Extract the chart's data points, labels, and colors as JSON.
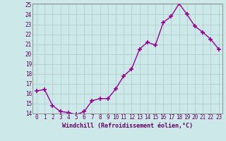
{
  "x": [
    0,
    1,
    2,
    3,
    4,
    5,
    6,
    7,
    8,
    9,
    10,
    11,
    12,
    13,
    14,
    15,
    16,
    17,
    18,
    19,
    20,
    21,
    22,
    23
  ],
  "y": [
    16.3,
    16.4,
    14.8,
    14.2,
    14.1,
    13.9,
    14.2,
    15.3,
    15.5,
    15.5,
    16.5,
    17.8,
    18.5,
    20.5,
    21.2,
    20.9,
    23.2,
    23.8,
    25.1,
    24.0,
    22.8,
    22.2,
    21.5,
    20.5
  ],
  "line_color": "#990099",
  "marker_color": "#990099",
  "bg_color": "#cce8e8",
  "grid_color": "#aacccc",
  "xlabel": "Windchill (Refroidissement éolien,°C)",
  "ylim": [
    14,
    25
  ],
  "xlim": [
    -0.5,
    23.5
  ],
  "yticks": [
    14,
    15,
    16,
    17,
    18,
    19,
    20,
    21,
    22,
    23,
    24,
    25
  ],
  "xticks": [
    0,
    1,
    2,
    3,
    4,
    5,
    6,
    7,
    8,
    9,
    10,
    11,
    12,
    13,
    14,
    15,
    16,
    17,
    18,
    19,
    20,
    21,
    22,
    23
  ],
  "axis_color": "#660066",
  "tick_color": "#660066",
  "xlabel_color": "#660066",
  "spine_color": "#888888"
}
